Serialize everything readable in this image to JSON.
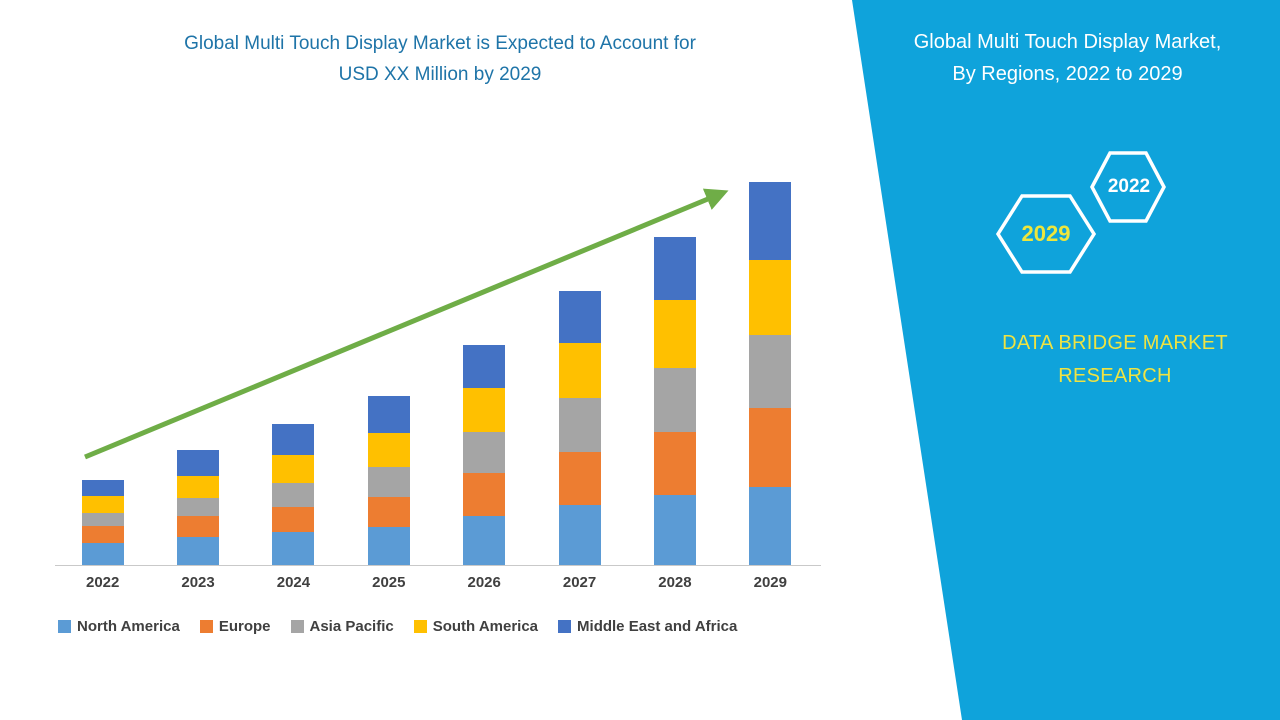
{
  "page": {
    "background": "#FFFFFF"
  },
  "title": {
    "line1": "Global Multi Touch Display Market is Expected to Account for",
    "line2": "USD XX Million by 2029",
    "color": "#1E74A8"
  },
  "right_panel": {
    "background": "#0FA3DB",
    "heading_line1": "Global Multi Touch Display Market,",
    "heading_line2": "By Regions, 2022 to 2029",
    "hexagons": [
      {
        "label": "2022",
        "label_color": "#FFFFFF"
      },
      {
        "label": "2029",
        "label_color": "#EDE63C"
      }
    ],
    "brand_line1": "DATA BRIDGE MARKET",
    "brand_line2": "RESEARCH",
    "brand_color": "#EFE342"
  },
  "chart_data": {
    "type": "bar",
    "stacked": true,
    "title": "Global Multi Touch Display Market is Expected to Account for USD XX Million by 2029",
    "categories": [
      "2022",
      "2023",
      "2024",
      "2025",
      "2026",
      "2027",
      "2028",
      "2029"
    ],
    "series": [
      {
        "name": "North America",
        "color": "#5B9BD5",
        "values": [
          22,
          28,
          33,
          38,
          49,
          60,
          70,
          78
        ]
      },
      {
        "name": "Europe",
        "color": "#ED7D31",
        "values": [
          17,
          21,
          25,
          30,
          43,
          53,
          63,
          79
        ]
      },
      {
        "name": "Asia Pacific",
        "color": "#A5A5A5",
        "values": [
          13,
          18,
          24,
          30,
          41,
          54,
          64,
          73
        ]
      },
      {
        "name": "South America",
        "color": "#FFC000",
        "values": [
          17,
          22,
          28,
          34,
          44,
          55,
          68,
          75
        ]
      },
      {
        "name": "Middle East and Africa",
        "color": "#4472C4",
        "values": [
          16,
          26,
          31,
          37,
          43,
          52,
          63,
          78
        ]
      }
    ],
    "totals": [
      85,
      115,
      141,
      169,
      220,
      274,
      328,
      383
    ],
    "xlabel": "",
    "ylabel": "",
    "y_axis_labels_shown": false,
    "grid": false,
    "legend_position": "bottom",
    "ylim": [
      0,
      420
    ],
    "value_scale": "relative units estimated from bar heights (axis values not labeled in image)",
    "trend_arrow": {
      "color": "#6FAD47",
      "from_category": "2022",
      "to_category": "2029"
    }
  }
}
